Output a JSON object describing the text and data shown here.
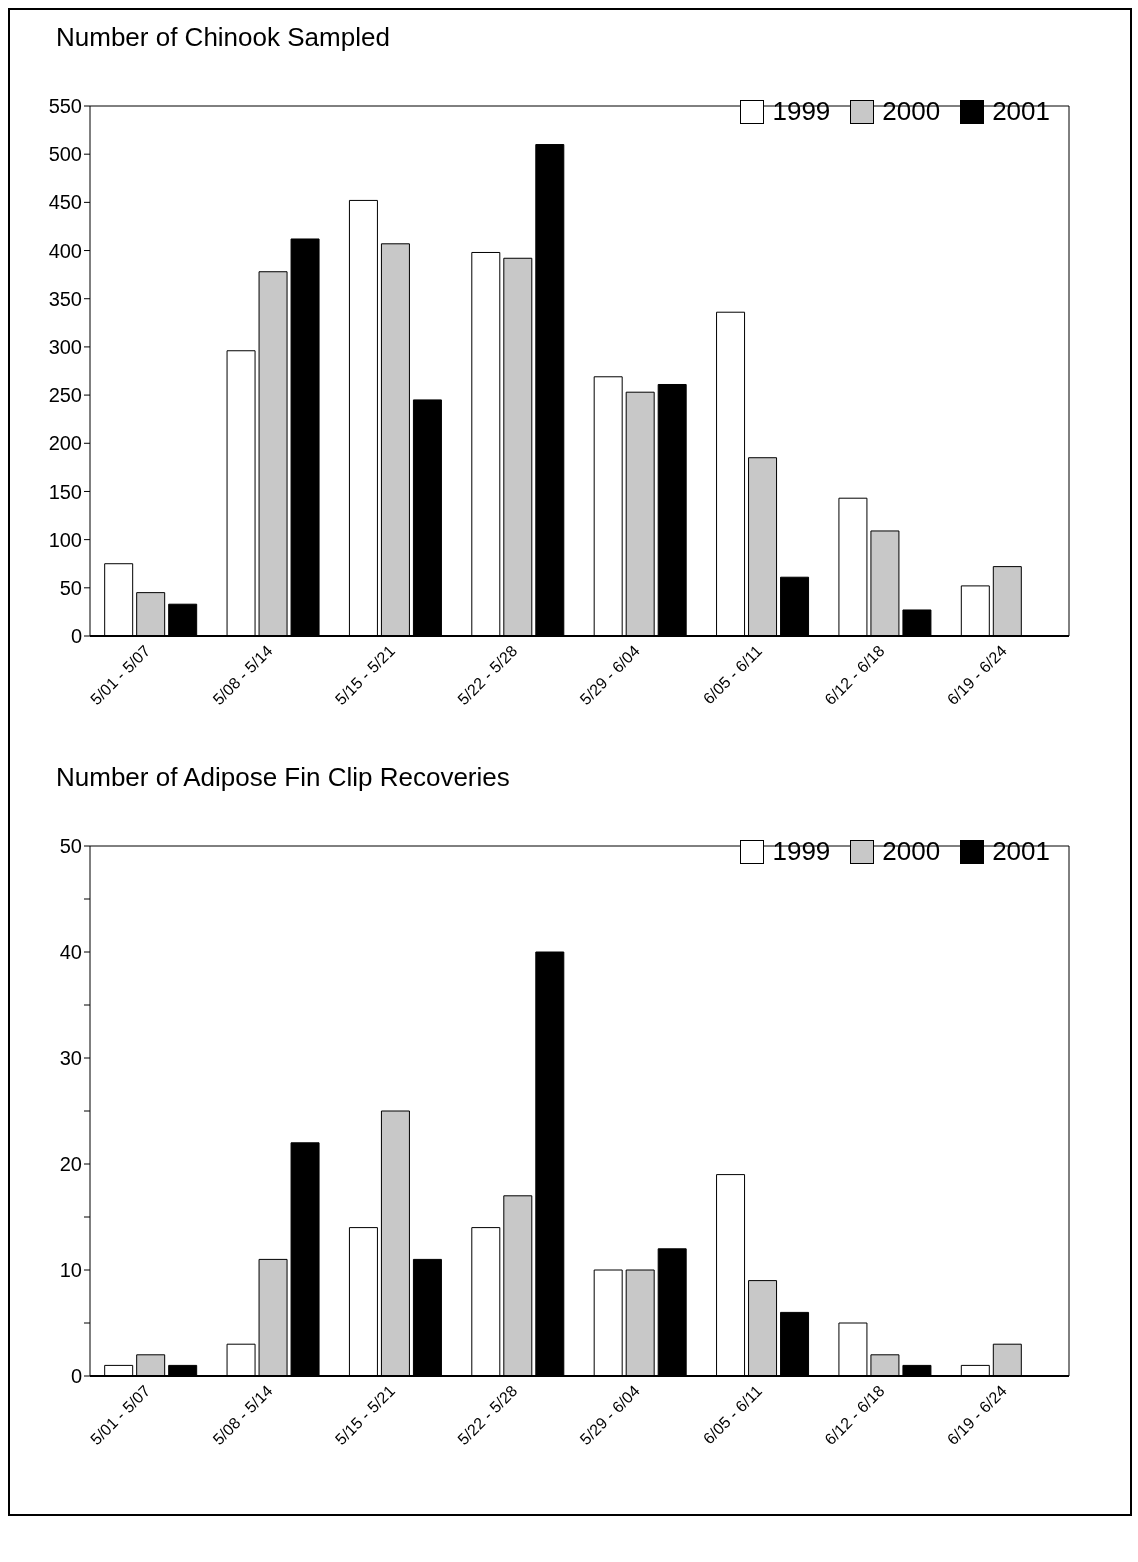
{
  "chart_data": [
    {
      "type": "bar",
      "title": "Number of Chinook Sampled",
      "categories": [
        "5/01 - 5/07",
        "5/08 - 5/14",
        "5/15 - 5/21",
        "5/22 - 5/28",
        "5/29 - 6/04",
        "6/05 - 6/11",
        "6/12 - 6/18",
        "6/19 - 6/24"
      ],
      "series": [
        {
          "name": "1999",
          "color": "#ffffff",
          "values": [
            75,
            296,
            452,
            398,
            269,
            336,
            143,
            52
          ]
        },
        {
          "name": "2000",
          "color": "#c8c8c8",
          "values": [
            45,
            378,
            407,
            392,
            253,
            185,
            109,
            72
          ]
        },
        {
          "name": "2001",
          "color": "#000000",
          "values": [
            33,
            412,
            245,
            510,
            261,
            61,
            27,
            0
          ]
        }
      ],
      "ylim": [
        0,
        550
      ],
      "yticks": [
        0,
        50,
        100,
        150,
        200,
        250,
        300,
        350,
        400,
        450,
        500,
        550
      ],
      "grid": false,
      "legend": "top right"
    },
    {
      "type": "bar",
      "title": "Number of Adipose Fin Clip Recoveries",
      "categories": [
        "5/01 - 5/07",
        "5/08 - 5/14",
        "5/15 - 5/21",
        "5/22 - 5/28",
        "5/29 - 6/04",
        "6/05 - 6/11",
        "6/12 - 6/18",
        "6/19 - 6/24"
      ],
      "series": [
        {
          "name": "1999",
          "color": "#ffffff",
          "values": [
            1,
            3,
            14,
            14,
            10,
            19,
            5,
            1
          ]
        },
        {
          "name": "2000",
          "color": "#c8c8c8",
          "values": [
            2,
            11,
            25,
            17,
            10,
            9,
            2,
            3
          ]
        },
        {
          "name": "2001",
          "color": "#000000",
          "values": [
            1,
            22,
            11,
            40,
            12,
            6,
            1,
            0
          ]
        }
      ],
      "ylim": [
        0,
        50
      ],
      "yticks": [
        0,
        {
          "value": 5,
          "label": null
        },
        10,
        {
          "value": 15,
          "label": null
        },
        20,
        {
          "value": 25,
          "label": null
        },
        30,
        {
          "value": 35,
          "label": null
        },
        40,
        {
          "value": 45,
          "label": null
        },
        50
      ],
      "grid": false,
      "legend": "top right"
    }
  ]
}
